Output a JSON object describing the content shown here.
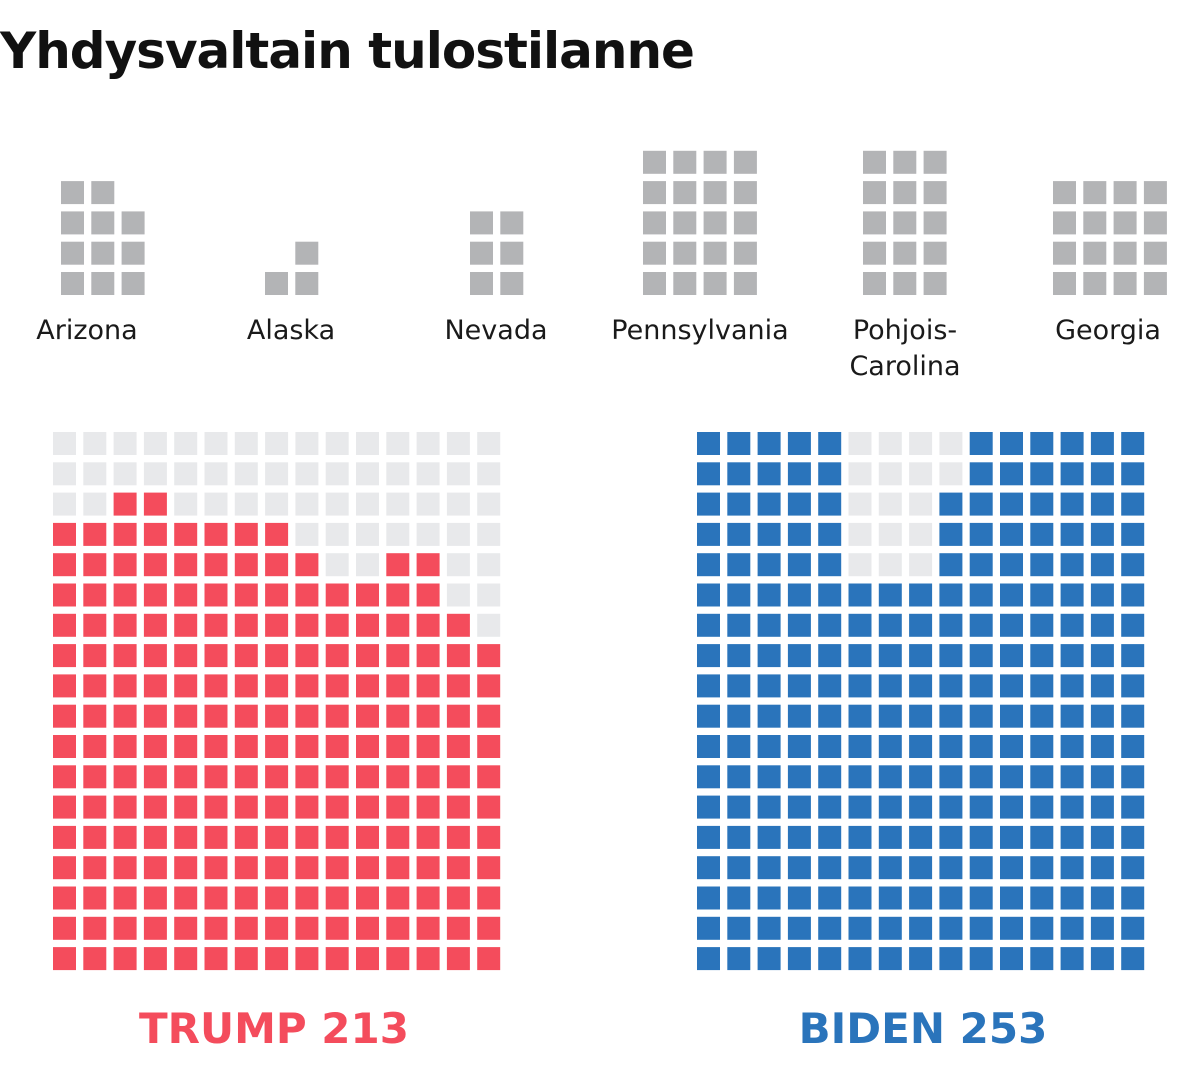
{
  "title": "Yhdysvaltain tulostilanne",
  "colors": {
    "trump": "#f44c5c",
    "biden": "#2a74bb",
    "undecided": "#b3b4b6",
    "empty": "#e8e9eb"
  },
  "chart_data": {
    "type": "waffle",
    "states": [
      {
        "name": "Arizona",
        "label_lines": [
          "Arizona"
        ],
        "electoral_votes": 11
      },
      {
        "name": "Alaska",
        "label_lines": [
          "Alaska"
        ],
        "electoral_votes": 3
      },
      {
        "name": "Nevada",
        "label_lines": [
          "Nevada"
        ],
        "electoral_votes": 6
      },
      {
        "name": "Pennsylvania",
        "label_lines": [
          "Pennsylvania"
        ],
        "electoral_votes": 20
      },
      {
        "name": "Pohjois-Carolina",
        "label_lines": [
          "Pohjois-",
          "Carolina"
        ],
        "electoral_votes": 15
      },
      {
        "name": "Georgia",
        "label_lines": [
          "Georgia"
        ],
        "electoral_votes": 16
      }
    ],
    "candidates": [
      {
        "name": "TRUMP",
        "votes": 213,
        "label": "TRUMP 213"
      },
      {
        "name": "BIDEN",
        "votes": 253,
        "label": "BIDEN 253"
      }
    ]
  }
}
